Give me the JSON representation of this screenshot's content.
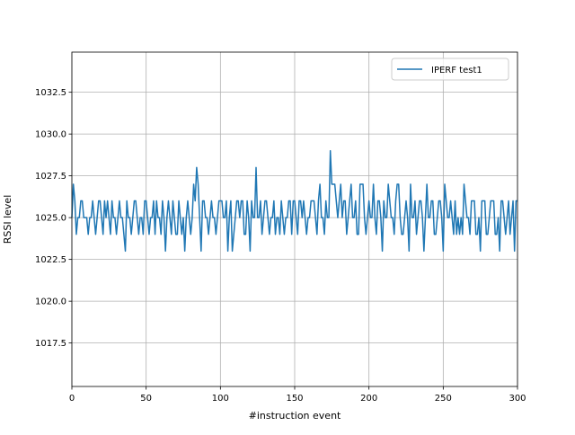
{
  "chart_data": {
    "type": "line",
    "xlabel": "#instruction event",
    "ylabel": "RSSI level",
    "x": [
      0,
      1,
      2,
      3,
      4,
      5,
      6,
      7,
      8,
      9,
      10,
      11,
      12,
      13,
      14,
      15,
      16,
      17,
      18,
      19,
      20,
      21,
      22,
      23,
      24,
      25,
      26,
      27,
      28,
      29,
      30,
      31,
      32,
      33,
      34,
      35,
      36,
      37,
      38,
      39,
      40,
      41,
      42,
      43,
      44,
      45,
      46,
      47,
      48,
      49,
      50,
      51,
      52,
      53,
      54,
      55,
      56,
      57,
      58,
      59,
      60,
      61,
      62,
      63,
      64,
      65,
      66,
      67,
      68,
      69,
      70,
      71,
      72,
      73,
      74,
      75,
      76,
      77,
      78,
      79,
      80,
      81,
      82,
      83,
      84,
      85,
      86,
      87,
      88,
      89,
      90,
      91,
      92,
      93,
      94,
      95,
      96,
      97,
      98,
      99,
      100,
      101,
      102,
      103,
      104,
      105,
      106,
      107,
      108,
      109,
      110,
      111,
      112,
      113,
      114,
      115,
      116,
      117,
      118,
      119,
      120,
      121,
      122,
      123,
      124,
      125,
      126,
      127,
      128,
      129,
      130,
      131,
      132,
      133,
      134,
      135,
      136,
      137,
      138,
      139,
      140,
      141,
      142,
      143,
      144,
      145,
      146,
      147,
      148,
      149,
      150,
      151,
      152,
      153,
      154,
      155,
      156,
      157,
      158,
      159,
      160,
      161,
      162,
      163,
      164,
      165,
      166,
      167,
      168,
      169,
      170,
      171,
      172,
      173,
      174,
      175,
      176,
      177,
      178,
      179,
      180,
      181,
      182,
      183,
      184,
      185,
      186,
      187,
      188,
      189,
      190,
      191,
      192,
      193,
      194,
      195,
      196,
      197,
      198,
      199,
      200,
      201,
      202,
      203,
      204,
      205,
      206,
      207,
      208,
      209,
      210,
      211,
      212,
      213,
      214,
      215,
      216,
      217,
      218,
      219,
      220,
      221,
      222,
      223,
      224,
      225,
      226,
      227,
      228,
      229,
      230,
      231,
      232,
      233,
      234,
      235,
      236,
      237,
      238,
      239,
      240,
      241,
      242,
      243,
      244,
      245,
      246,
      247,
      248,
      249,
      250,
      251,
      252,
      253,
      254,
      255,
      256,
      257,
      258,
      259,
      260,
      261,
      262,
      263,
      264,
      265,
      266,
      267,
      268,
      269,
      270,
      271,
      272,
      273,
      274,
      275,
      276,
      277,
      278,
      279,
      280,
      281,
      282,
      283,
      284,
      285,
      286,
      287,
      288,
      289,
      290,
      291,
      292,
      293,
      294,
      295,
      296,
      297,
      298,
      299,
      300
    ],
    "series": [
      {
        "name": "IPERF test1",
        "color": "#1f77b4",
        "values": [
          1025,
          1027,
          1026,
          1024,
          1025,
          1025,
          1026,
          1026,
          1025,
          1025,
          1025,
          1024,
          1025,
          1025,
          1026,
          1025,
          1024,
          1025,
          1026,
          1026,
          1025,
          1024,
          1026,
          1025,
          1026,
          1025,
          1024,
          1026,
          1025,
          1025,
          1024,
          1025,
          1026,
          1025,
          1025,
          1024,
          1023,
          1026,
          1025,
          1025,
          1024,
          1025,
          1026,
          1026,
          1025,
          1024,
          1025,
          1025,
          1024,
          1026,
          1026,
          1025,
          1024,
          1025,
          1025,
          1026,
          1024,
          1026,
          1025,
          1025,
          1024,
          1026,
          1025,
          1023,
          1025,
          1026,
          1025,
          1024,
          1026,
          1025,
          1024,
          1024,
          1026,
          1025,
          1024,
          1025,
          1023,
          1025,
          1026,
          1025,
          1024,
          1025,
          1027,
          1026,
          1028,
          1027,
          1025,
          1023,
          1026,
          1026,
          1025,
          1025,
          1024,
          1025,
          1026,
          1025,
          1025,
          1024,
          1025,
          1026,
          1026,
          1026,
          1025,
          1025,
          1026,
          1023,
          1025,
          1026,
          1023,
          1024,
          1025,
          1026,
          1026,
          1025,
          1026,
          1026,
          1024,
          1024,
          1026,
          1025,
          1023,
          1026,
          1025,
          1025,
          1028,
          1025,
          1025,
          1026,
          1024,
          1025,
          1026,
          1026,
          1025,
          1024,
          1025,
          1025,
          1026,
          1024,
          1025,
          1025,
          1024,
          1026,
          1025,
          1024,
          1025,
          1025,
          1026,
          1026,
          1024,
          1026,
          1026,
          1025,
          1024,
          1026,
          1026,
          1025,
          1026,
          1025,
          1024,
          1025,
          1025,
          1026,
          1026,
          1026,
          1025,
          1024,
          1026,
          1027,
          1025,
          1025,
          1024,
          1026,
          1025,
          1025,
          1029,
          1027,
          1027,
          1027,
          1026,
          1025,
          1026,
          1027,
          1025,
          1026,
          1026,
          1024,
          1025,
          1026,
          1027,
          1025,
          1025,
          1026,
          1024,
          1024,
          1027,
          1027,
          1027,
          1025,
          1024,
          1025,
          1026,
          1025,
          1025,
          1027,
          1025,
          1024,
          1026,
          1026,
          1025,
          1023,
          1026,
          1025,
          1025,
          1027,
          1026,
          1025,
          1025,
          1024,
          1026,
          1027,
          1027,
          1025,
          1024,
          1024,
          1025,
          1026,
          1025,
          1023,
          1027,
          1025,
          1025,
          1026,
          1024,
          1025,
          1026,
          1026,
          1025,
          1023,
          1025,
          1027,
          1025,
          1025,
          1026,
          1026,
          1024,
          1024,
          1025,
          1026,
          1026,
          1025,
          1023,
          1027,
          1026,
          1025,
          1025,
          1026,
          1025,
          1024,
          1026,
          1024,
          1025,
          1024,
          1025,
          1024,
          1027,
          1026,
          1025,
          1025,
          1024,
          1026,
          1026,
          1026,
          1024,
          1024,
          1025,
          1023,
          1026,
          1026,
          1026,
          1024,
          1024,
          1025,
          1026,
          1026,
          1026,
          1024,
          1024,
          1025,
          1023,
          1026,
          1026,
          1025,
          1024,
          1025,
          1026,
          1024,
          1025,
          1026,
          1023,
          1026,
          1026
        ]
      }
    ],
    "xlim": [
      0,
      300
    ],
    "xticks": [
      0,
      50,
      100,
      150,
      200,
      250,
      300
    ],
    "ylim": [
      1014.9,
      1034.9
    ],
    "yticks": [
      1017.5,
      {
        "value": 1020,
        "label": "1020.0"
      },
      1022.5,
      {
        "value": 1025,
        "label": "1025.0"
      },
      1027.5,
      {
        "value": 1030,
        "label": "1030.0"
      },
      1032.5
    ],
    "grid": true,
    "legend": "upper right"
  }
}
